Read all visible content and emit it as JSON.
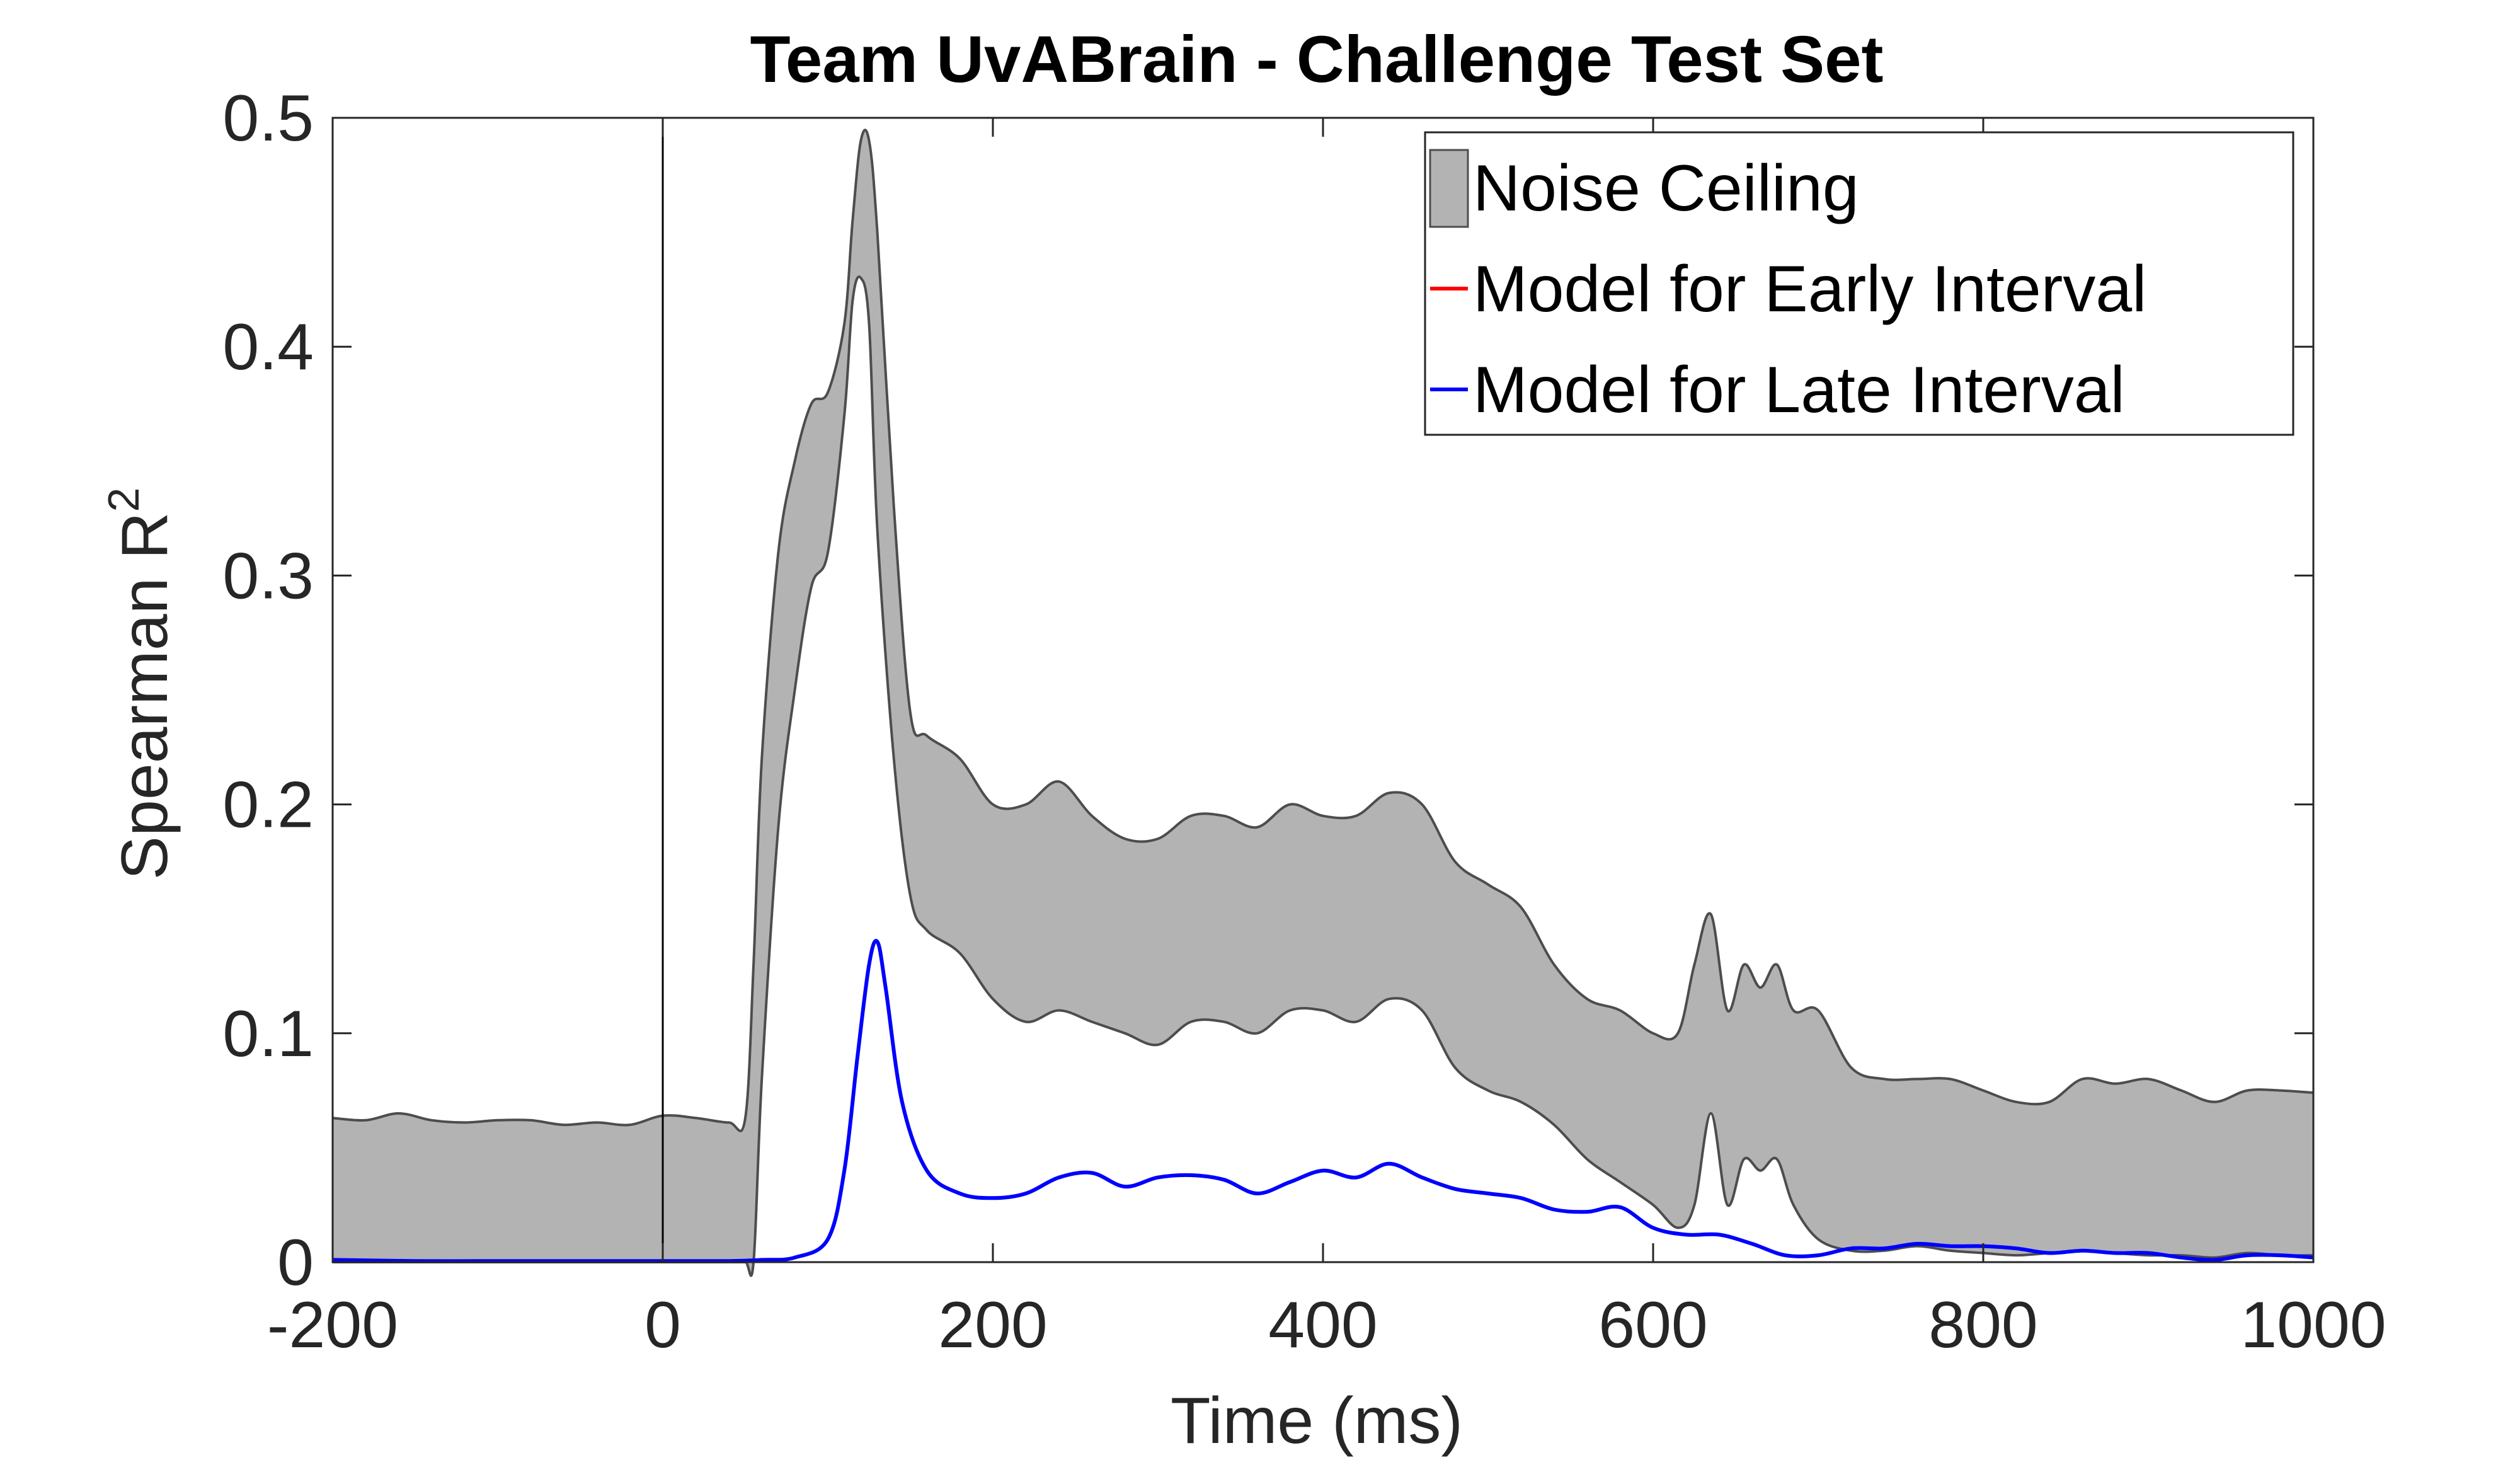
{
  "chart_data": {
    "type": "line",
    "title": "Team UvABrain  - Challenge Test Set",
    "xlabel": "Time (ms)",
    "ylabel": "Spearman R",
    "ylabel_superscript": "2",
    "xlim": [
      -200,
      1000
    ],
    "ylim": [
      0,
      0.5
    ],
    "xticks": [
      -200,
      0,
      200,
      400,
      600,
      800,
      1000
    ],
    "xtick_labels": [
      "-200",
      "0",
      "200",
      "400",
      "600",
      "800",
      "1000"
    ],
    "yticks": [
      0,
      0.1,
      0.2,
      0.3,
      0.4,
      0.5
    ],
    "ytick_labels": [
      "0",
      "0.1",
      "0.2",
      "0.3",
      "0.4",
      "0.5"
    ],
    "grid": false,
    "legend_position": "top-right",
    "vertical_line_x": 0,
    "legend": [
      {
        "label": "Noise Ceiling",
        "kind": "patch",
        "color": "#b3b3b3"
      },
      {
        "label": "Model for Early Interval",
        "kind": "line",
        "color": "#ff0000"
      },
      {
        "label": "Model for Late Interval",
        "kind": "line",
        "color": "#0000ff"
      }
    ],
    "noise_ceiling": {
      "name": "Noise Ceiling",
      "color": "#b3b3b3",
      "edge_color": "#4d4d4d",
      "x": [
        -200,
        -180,
        -160,
        -140,
        -120,
        -100,
        -80,
        -60,
        -40,
        -20,
        0,
        20,
        40,
        50,
        55,
        60,
        70,
        80,
        90,
        100,
        110,
        115,
        120,
        125,
        130,
        140,
        150,
        160,
        180,
        200,
        220,
        240,
        260,
        280,
        300,
        320,
        340,
        360,
        380,
        400,
        420,
        440,
        460,
        480,
        500,
        520,
        540,
        560,
        580,
        600,
        615,
        625,
        635,
        645,
        655,
        665,
        675,
        685,
        700,
        720,
        740,
        760,
        780,
        800,
        820,
        840,
        860,
        880,
        900,
        920,
        940,
        960,
        980,
        1000
      ],
      "upper": [
        0.063,
        0.062,
        0.065,
        0.062,
        0.061,
        0.062,
        0.062,
        0.06,
        0.061,
        0.06,
        0.064,
        0.063,
        0.061,
        0.063,
        0.13,
        0.22,
        0.31,
        0.35,
        0.375,
        0.38,
        0.41,
        0.455,
        0.49,
        0.49,
        0.45,
        0.33,
        0.24,
        0.23,
        0.22,
        0.2,
        0.2,
        0.21,
        0.195,
        0.185,
        0.185,
        0.195,
        0.195,
        0.19,
        0.2,
        0.195,
        0.195,
        0.205,
        0.2,
        0.175,
        0.165,
        0.155,
        0.13,
        0.115,
        0.11,
        0.1,
        0.1,
        0.13,
        0.152,
        0.11,
        0.13,
        0.12,
        0.13,
        0.11,
        0.11,
        0.085,
        0.08,
        0.08,
        0.08,
        0.075,
        0.07,
        0.07,
        0.08,
        0.078,
        0.08,
        0.075,
        0.07,
        0.075,
        0.075,
        0.074
      ],
      "lower": [
        0.0,
        0.0,
        0.0,
        0.0,
        0.0,
        0.0,
        0.0,
        0.0,
        0.0,
        0.0,
        0.0,
        0.0,
        0.0,
        0.0,
        0.0,
        0.08,
        0.19,
        0.25,
        0.295,
        0.31,
        0.37,
        0.42,
        0.43,
        0.41,
        0.32,
        0.22,
        0.16,
        0.145,
        0.135,
        0.115,
        0.105,
        0.11,
        0.105,
        0.1,
        0.095,
        0.105,
        0.105,
        0.1,
        0.11,
        0.11,
        0.105,
        0.115,
        0.11,
        0.085,
        0.075,
        0.07,
        0.06,
        0.045,
        0.035,
        0.025,
        0.015,
        0.025,
        0.065,
        0.025,
        0.045,
        0.04,
        0.045,
        0.025,
        0.01,
        0.005,
        0.005,
        0.007,
        0.005,
        0.004,
        0.003,
        0.004,
        0.005,
        0.004,
        0.003,
        0.003,
        0.002,
        0.004,
        0.003,
        0.003
      ]
    },
    "series": [
      {
        "name": "Model for Late Interval",
        "color": "#0000ff",
        "x": [
          -200,
          -150,
          -100,
          -50,
          0,
          40,
          60,
          80,
          100,
          110,
          118,
          125,
          130,
          135,
          145,
          160,
          180,
          200,
          220,
          240,
          260,
          280,
          300,
          320,
          340,
          360,
          380,
          400,
          420,
          440,
          460,
          480,
          500,
          520,
          540,
          560,
          580,
          600,
          620,
          640,
          660,
          680,
          700,
          720,
          740,
          760,
          780,
          800,
          820,
          840,
          860,
          880,
          900,
          920,
          940,
          960,
          980,
          1000
        ],
        "y": [
          0.001,
          0.0005,
          0.0005,
          0.0005,
          0.0005,
          0.0005,
          0.001,
          0.002,
          0.01,
          0.04,
          0.09,
          0.13,
          0.14,
          0.12,
          0.07,
          0.04,
          0.03,
          0.028,
          0.03,
          0.037,
          0.039,
          0.033,
          0.037,
          0.038,
          0.036,
          0.03,
          0.035,
          0.04,
          0.037,
          0.043,
          0.037,
          0.032,
          0.03,
          0.028,
          0.023,
          0.022,
          0.024,
          0.015,
          0.012,
          0.012,
          0.008,
          0.003,
          0.003,
          0.006,
          0.006,
          0.008,
          0.007,
          0.007,
          0.006,
          0.004,
          0.005,
          0.004,
          0.004,
          0.002,
          0.001,
          0.003,
          0.003,
          0.002
        ]
      },
      {
        "name": "Model for Early Interval",
        "color": "#ff0000",
        "x": [],
        "y": []
      }
    ]
  }
}
